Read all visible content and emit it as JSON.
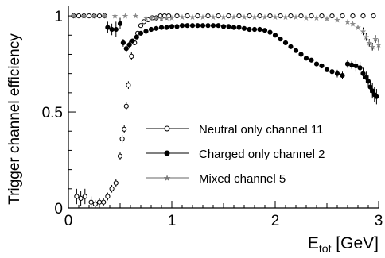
{
  "chart_data": {
    "type": "scatter",
    "xlabel": "E",
    "xlabel_sub": "tot",
    "xlabel_unit": " [GeV]",
    "ylabel": "Trigger channel efficiency",
    "xlim": [
      0,
      3
    ],
    "ylim": [
      0,
      1.05
    ],
    "x_ticks": [
      0,
      1,
      2,
      3
    ],
    "x_tick_labels": [
      "0",
      "1",
      "2",
      "3"
    ],
    "y_ticks": [
      0,
      0.5,
      1
    ],
    "y_tick_labels": [
      "0",
      "0.5",
      "1"
    ],
    "grid": false,
    "legend_position": "center-right",
    "series": [
      {
        "name": "Neutral only channel 11",
        "marker": "open-circle",
        "points": [
          [
            0.05,
            1.0,
            0
          ],
          [
            0.1,
            1.0,
            0
          ],
          [
            0.15,
            1.0,
            0
          ],
          [
            0.2,
            1.0,
            0
          ],
          [
            0.25,
            1.0,
            0
          ],
          [
            0.3,
            1.0,
            0
          ],
          [
            0.35,
            1.0,
            0
          ],
          [
            0.08,
            0.06,
            0.04
          ],
          [
            0.12,
            0.05,
            0.04
          ],
          [
            0.16,
            0.06,
            0.04
          ],
          [
            0.22,
            0.03,
            0.03
          ],
          [
            0.26,
            0.02,
            0.02
          ],
          [
            0.3,
            0.03,
            0.02
          ],
          [
            0.34,
            0.03,
            0.02
          ],
          [
            0.38,
            0.06,
            0.02
          ],
          [
            0.42,
            0.1,
            0.02
          ],
          [
            0.46,
            0.13,
            0.02
          ],
          [
            0.5,
            0.27,
            0.02
          ],
          [
            0.52,
            0.36,
            0.02
          ],
          [
            0.54,
            0.41,
            0.02
          ],
          [
            0.56,
            0.53,
            0.02
          ],
          [
            0.58,
            0.64,
            0.02
          ],
          [
            0.61,
            0.79,
            0.02
          ],
          [
            0.64,
            0.86,
            0.01
          ],
          [
            0.67,
            0.91,
            0.01
          ],
          [
            0.7,
            0.95,
            0.01
          ],
          [
            0.73,
            0.97,
            0
          ],
          [
            0.77,
            0.98,
            0
          ],
          [
            0.81,
            0.99,
            0
          ],
          [
            0.85,
            0.99,
            0
          ],
          [
            0.89,
            1.0,
            0
          ],
          [
            0.93,
            1.0,
            0
          ],
          [
            0.97,
            1.0,
            0
          ],
          [
            1.05,
            1.0,
            0
          ],
          [
            1.15,
            1.0,
            0
          ],
          [
            1.25,
            1.0,
            0
          ],
          [
            1.35,
            1.0,
            0
          ],
          [
            1.45,
            1.0,
            0
          ],
          [
            1.55,
            1.0,
            0
          ],
          [
            1.65,
            1.0,
            0
          ],
          [
            1.75,
            1.0,
            0
          ],
          [
            1.85,
            1.0,
            0
          ],
          [
            1.95,
            1.0,
            0
          ],
          [
            2.05,
            1.0,
            0
          ],
          [
            2.15,
            1.0,
            0
          ],
          [
            2.25,
            1.0,
            0
          ],
          [
            2.35,
            1.0,
            0
          ],
          [
            2.45,
            1.0,
            0
          ],
          [
            2.55,
            1.0,
            0
          ],
          [
            2.65,
            1.0,
            0
          ],
          [
            2.75,
            1.0,
            0
          ],
          [
            2.85,
            1.0,
            0
          ],
          [
            2.95,
            1.0,
            0
          ]
        ]
      },
      {
        "name": "Charged only channel 2",
        "marker": "filled-circle",
        "points": [
          [
            0.38,
            0.94,
            0.03
          ],
          [
            0.42,
            0.93,
            0.03
          ],
          [
            0.46,
            0.93,
            0.04
          ],
          [
            0.5,
            0.96,
            0.03
          ],
          [
            0.53,
            0.86,
            0.02
          ],
          [
            0.56,
            0.83,
            0.02
          ],
          [
            0.59,
            0.85,
            0.02
          ],
          [
            0.62,
            0.87,
            0.01
          ],
          [
            0.66,
            0.89,
            0.01
          ],
          [
            0.7,
            0.91,
            0.01
          ],
          [
            0.75,
            0.92,
            0.01
          ],
          [
            0.8,
            0.93,
            0.01
          ],
          [
            0.85,
            0.935,
            0.01
          ],
          [
            0.9,
            0.94,
            0.01
          ],
          [
            0.95,
            0.94,
            0.01
          ],
          [
            1.0,
            0.945,
            0.01
          ],
          [
            1.05,
            0.945,
            0.01
          ],
          [
            1.1,
            0.95,
            0.01
          ],
          [
            1.15,
            0.95,
            0.01
          ],
          [
            1.2,
            0.95,
            0.01
          ],
          [
            1.25,
            0.95,
            0.01
          ],
          [
            1.3,
            0.95,
            0.01
          ],
          [
            1.35,
            0.95,
            0.01
          ],
          [
            1.4,
            0.95,
            0.01
          ],
          [
            1.45,
            0.95,
            0.01
          ],
          [
            1.5,
            0.945,
            0.01
          ],
          [
            1.55,
            0.945,
            0.01
          ],
          [
            1.6,
            0.94,
            0.01
          ],
          [
            1.65,
            0.94,
            0.01
          ],
          [
            1.7,
            0.935,
            0.01
          ],
          [
            1.75,
            0.93,
            0.01
          ],
          [
            1.8,
            0.93,
            0.01
          ],
          [
            1.85,
            0.93,
            0.01
          ],
          [
            1.9,
            0.925,
            0.01
          ],
          [
            1.95,
            0.915,
            0.01
          ],
          [
            2.0,
            0.9,
            0.01
          ],
          [
            2.05,
            0.88,
            0.01
          ],
          [
            2.1,
            0.86,
            0.01
          ],
          [
            2.15,
            0.84,
            0.01
          ],
          [
            2.2,
            0.82,
            0.01
          ],
          [
            2.25,
            0.8,
            0.01
          ],
          [
            2.3,
            0.78,
            0.01
          ],
          [
            2.35,
            0.77,
            0.01
          ],
          [
            2.4,
            0.75,
            0.01
          ],
          [
            2.45,
            0.74,
            0.01
          ],
          [
            2.5,
            0.72,
            0.01
          ],
          [
            2.55,
            0.71,
            0.02
          ],
          [
            2.6,
            0.7,
            0.02
          ],
          [
            2.65,
            0.69,
            0.02
          ],
          [
            2.7,
            0.75,
            0.02
          ],
          [
            2.74,
            0.745,
            0.02
          ],
          [
            2.78,
            0.74,
            0.03
          ],
          [
            2.82,
            0.73,
            0.03
          ],
          [
            2.85,
            0.7,
            0.03
          ],
          [
            2.88,
            0.68,
            0.03
          ],
          [
            2.9,
            0.66,
            0.03
          ],
          [
            2.92,
            0.63,
            0.03
          ],
          [
            2.94,
            0.61,
            0.04
          ],
          [
            2.96,
            0.59,
            0.04
          ],
          [
            2.98,
            0.58,
            0.04
          ]
        ]
      },
      {
        "name": "Mixed channel 5",
        "marker": "star",
        "points": [
          [
            0.05,
            1.0,
            0
          ],
          [
            0.15,
            1.0,
            0
          ],
          [
            0.25,
            1.0,
            0
          ],
          [
            0.35,
            1.0,
            0
          ],
          [
            0.45,
            1.0,
            0
          ],
          [
            0.55,
            1.0,
            0
          ],
          [
            0.65,
            1.0,
            0
          ],
          [
            0.75,
            0.99,
            0.01
          ],
          [
            0.8,
            0.99,
            0.01
          ],
          [
            0.85,
            0.985,
            0.01
          ],
          [
            0.9,
            0.985,
            0.01
          ],
          [
            0.95,
            0.99,
            0.01
          ],
          [
            1.0,
            0.99,
            0
          ],
          [
            1.1,
            0.995,
            0
          ],
          [
            1.2,
            0.995,
            0
          ],
          [
            1.3,
            0.995,
            0
          ],
          [
            1.4,
            0.995,
            0
          ],
          [
            1.5,
            0.995,
            0
          ],
          [
            1.6,
            0.995,
            0
          ],
          [
            1.7,
            0.995,
            0
          ],
          [
            1.8,
            0.995,
            0
          ],
          [
            1.9,
            0.995,
            0
          ],
          [
            2.0,
            0.995,
            0
          ],
          [
            2.1,
            0.995,
            0
          ],
          [
            2.2,
            0.995,
            0
          ],
          [
            2.3,
            0.99,
            0
          ],
          [
            2.4,
            0.99,
            0
          ],
          [
            2.5,
            0.985,
            0
          ],
          [
            2.6,
            0.98,
            0.01
          ],
          [
            2.7,
            0.97,
            0.01
          ],
          [
            2.75,
            0.96,
            0.01
          ],
          [
            2.8,
            0.94,
            0.01
          ],
          [
            2.85,
            0.92,
            0.02
          ],
          [
            2.88,
            0.89,
            0.02
          ],
          [
            2.91,
            0.86,
            0.02
          ],
          [
            2.94,
            0.84,
            0.02
          ],
          [
            2.97,
            0.88,
            0.02
          ],
          [
            3.0,
            0.85,
            0.03
          ]
        ]
      }
    ]
  }
}
